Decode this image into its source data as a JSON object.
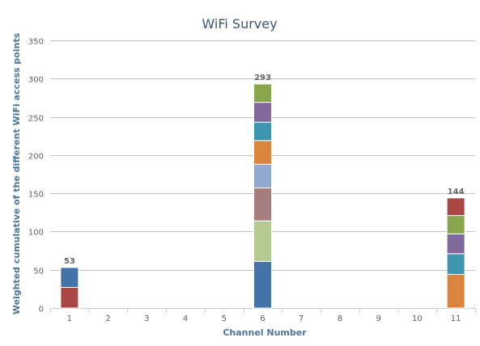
{
  "chart_data": {
    "type": "bar",
    "stacked": true,
    "title": "WiFi Survey",
    "xlabel": "Channel Number",
    "ylabel": "Weighted cumulative of the different WiFi access points",
    "categories": [
      "1",
      "2",
      "3",
      "4",
      "5",
      "6",
      "7",
      "8",
      "9",
      "10",
      "11"
    ],
    "ylim": [
      0,
      350
    ],
    "yticks": [
      0,
      50,
      100,
      150,
      200,
      250,
      300,
      350
    ],
    "grid": true,
    "stacks": [
      {
        "category": "1",
        "total": "53",
        "segments": [
          {
            "value": 27,
            "color": "#aa4643"
          },
          {
            "value": 26,
            "color": "#4572a7"
          }
        ]
      },
      {
        "category": "6",
        "total": "293",
        "segments": [
          {
            "value": 61,
            "color": "#4572a7"
          },
          {
            "value": 53,
            "color": "#b5ca92"
          },
          {
            "value": 43,
            "color": "#a47d7c"
          },
          {
            "value": 31,
            "color": "#92a8cd"
          },
          {
            "value": 31,
            "color": "#db843d"
          },
          {
            "value": 24,
            "color": "#3d96ae"
          },
          {
            "value": 26,
            "color": "#80699b"
          },
          {
            "value": 24,
            "color": "#89a54e"
          }
        ]
      },
      {
        "category": "11",
        "total": "144",
        "segments": [
          {
            "value": 44,
            "color": "#db843d"
          },
          {
            "value": 27,
            "color": "#3d96ae"
          },
          {
            "value": 26,
            "color": "#80699b"
          },
          {
            "value": 24,
            "color": "#89a54e"
          },
          {
            "value": 23,
            "color": "#aa4643"
          }
        ]
      }
    ]
  }
}
